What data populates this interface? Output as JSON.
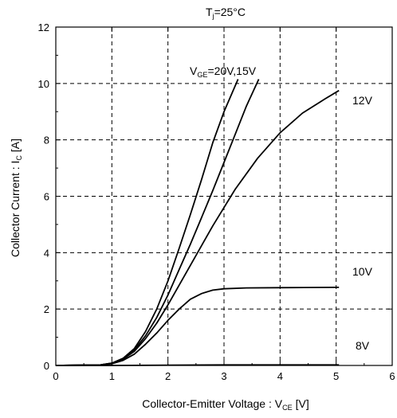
{
  "chart_data": {
    "type": "line",
    "title": "T",
    "title_subscript": "j",
    "title_suffix": "=25°C",
    "xlabel": "Collector-Emitter Voltage  :  V",
    "xlabel_subscript": "CE",
    "xlabel_suffix": "  [V]",
    "ylabel": "Collector Current  :  I",
    "ylabel_subscript": "C",
    "ylabel_suffix": "  [A]",
    "xlim": [
      0,
      6
    ],
    "ylim": [
      0,
      12
    ],
    "xticks": [
      "0",
      "1",
      "2",
      "3",
      "4",
      "5",
      "6"
    ],
    "yticks": [
      "0",
      "2",
      "4",
      "6",
      "8",
      "10",
      "12"
    ],
    "grid": true,
    "series": [
      {
        "name": "V",
        "name_subscript": "GE",
        "name_suffix": "=20V,15V",
        "x": [
          0,
          0.8,
          1.0,
          1.2,
          1.4,
          1.6,
          1.8,
          2.0,
          2.2,
          2.4,
          2.6,
          2.8,
          3.0,
          3.25
        ],
        "y": [
          0,
          0.02,
          0.08,
          0.25,
          0.6,
          1.2,
          2.0,
          3.0,
          4.15,
          5.35,
          6.6,
          7.9,
          9.0,
          10.15
        ]
      },
      {
        "name": "",
        "x": [
          0,
          0.8,
          1.0,
          1.2,
          1.4,
          1.6,
          1.8,
          2.0,
          2.2,
          2.4,
          2.6,
          2.8,
          3.0,
          3.2,
          3.4,
          3.62
        ],
        "y": [
          0,
          0.02,
          0.08,
          0.25,
          0.55,
          1.05,
          1.7,
          2.5,
          3.4,
          4.3,
          5.25,
          6.2,
          7.2,
          8.2,
          9.2,
          10.15
        ]
      },
      {
        "name": "12V",
        "x": [
          0,
          0.8,
          1.0,
          1.2,
          1.4,
          1.6,
          1.8,
          2.0,
          2.4,
          2.8,
          3.2,
          3.6,
          4.0,
          4.4,
          4.8,
          5.05
        ],
        "y": [
          0,
          0.02,
          0.08,
          0.22,
          0.5,
          0.95,
          1.5,
          2.15,
          3.55,
          4.95,
          6.25,
          7.35,
          8.25,
          8.95,
          9.45,
          9.75
        ]
      },
      {
        "name": "10V",
        "x": [
          0,
          0.8,
          1.0,
          1.2,
          1.4,
          1.6,
          1.8,
          2.0,
          2.2,
          2.4,
          2.6,
          2.8,
          3.0,
          3.4,
          4.0,
          5.05
        ],
        "y": [
          0,
          0.02,
          0.06,
          0.18,
          0.4,
          0.75,
          1.15,
          1.6,
          2.0,
          2.35,
          2.55,
          2.67,
          2.72,
          2.75,
          2.76,
          2.77
        ]
      },
      {
        "name": "8V",
        "x": [
          0,
          1.0,
          2.0,
          3.0,
          4.0,
          5.05
        ],
        "y": [
          0,
          0.0,
          0.01,
          0.02,
          0.02,
          0.02
        ]
      }
    ]
  }
}
